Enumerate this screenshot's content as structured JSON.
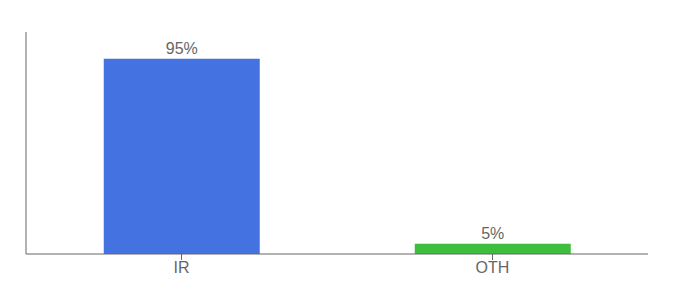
{
  "chart_data": {
    "type": "bar",
    "categories": [
      "IR",
      "OTH"
    ],
    "values": [
      95,
      5
    ],
    "value_labels": [
      "95%",
      "5%"
    ],
    "colors": [
      "#4472e0",
      "#3dbf3d"
    ],
    "ylim": [
      0,
      108
    ],
    "yticks": [],
    "data_labels": true,
    "tick_labels": "x",
    "grid": false
  }
}
